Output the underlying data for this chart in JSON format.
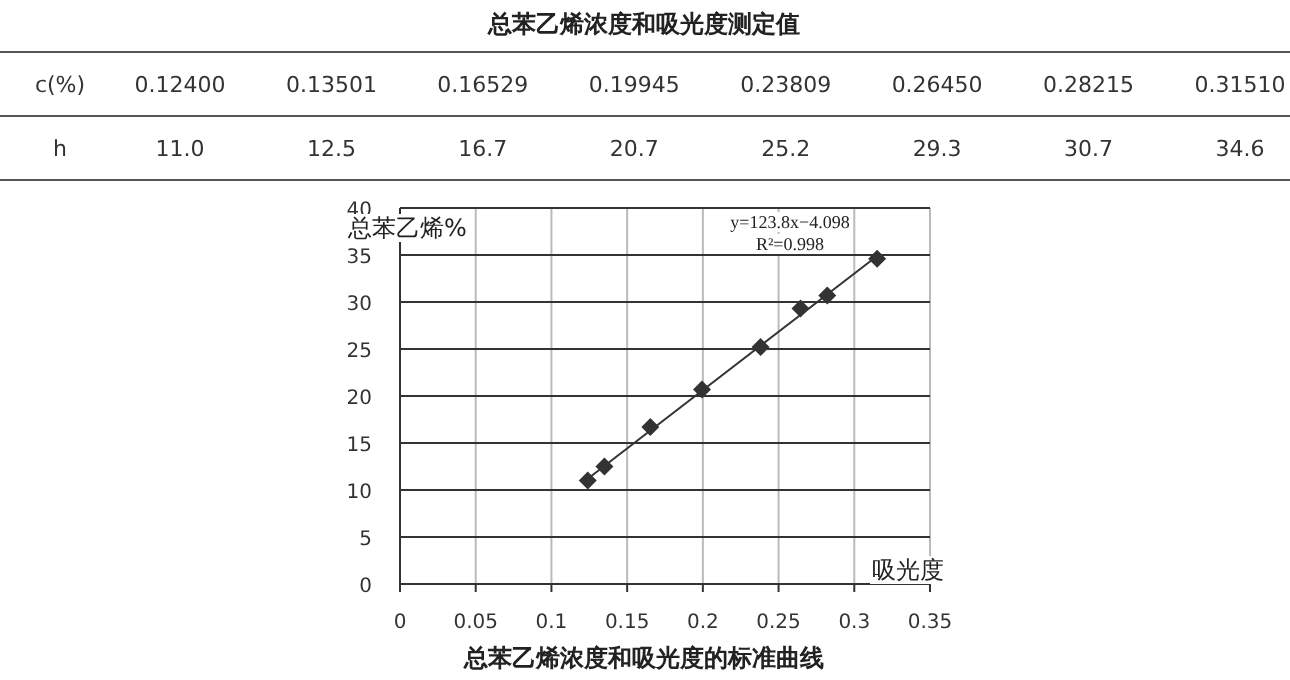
{
  "chart_data": [
    {
      "type": "other",
      "title": "总苯乙烯浓度和吸光度测定值",
      "xlabel": "c(%)",
      "categories": [
        "0.12400",
        "0.13501",
        "0.16529",
        "0.19945",
        "0.23809",
        "0.26450",
        "0.28215",
        "0.31510"
      ],
      "series": [
        {
          "name": "h",
          "values": [
            11.0,
            12.5,
            16.7,
            20.7,
            25.2,
            29.3,
            30.7,
            34.6
          ],
          "value_labels": [
            "11.0",
            "12.5",
            "16.7",
            "20.7",
            "25.2",
            "29.3",
            "30.7",
            "34.6"
          ]
        }
      ]
    },
    {
      "type": "scatter",
      "title": "总苯乙烯浓度和吸光度的标准曲线",
      "xlabel": "吸光度",
      "ylabel": "总苯乙烯%",
      "x": [
        0.124,
        0.13501,
        0.16529,
        0.19945,
        0.23809,
        0.2645,
        0.28215,
        0.3151
      ],
      "series": [
        {
          "type": "scatter",
          "color": "#333333",
          "values": [
            11.0,
            12.5,
            16.7,
            20.7,
            25.2,
            29.3,
            30.7,
            34.6
          ]
        },
        {
          "type": "line",
          "color": "#333333",
          "marker": "none",
          "x": [
            0.124,
            0.3151
          ],
          "values": [
            11.2,
            34.9
          ]
        }
      ],
      "marker": "diamond",
      "grid": true,
      "xlim": [
        0,
        0.35
      ],
      "xticks": [
        0,
        0.05,
        0.1,
        0.15,
        0.2,
        0.25,
        0.3,
        0.35
      ],
      "ylim": [
        0,
        40
      ],
      "yticks": [
        0,
        5,
        10,
        15,
        20,
        25,
        30,
        35,
        40
      ],
      "annotations": [
        "y=123.8x−4.098",
        "R²=0.998"
      ]
    }
  ]
}
